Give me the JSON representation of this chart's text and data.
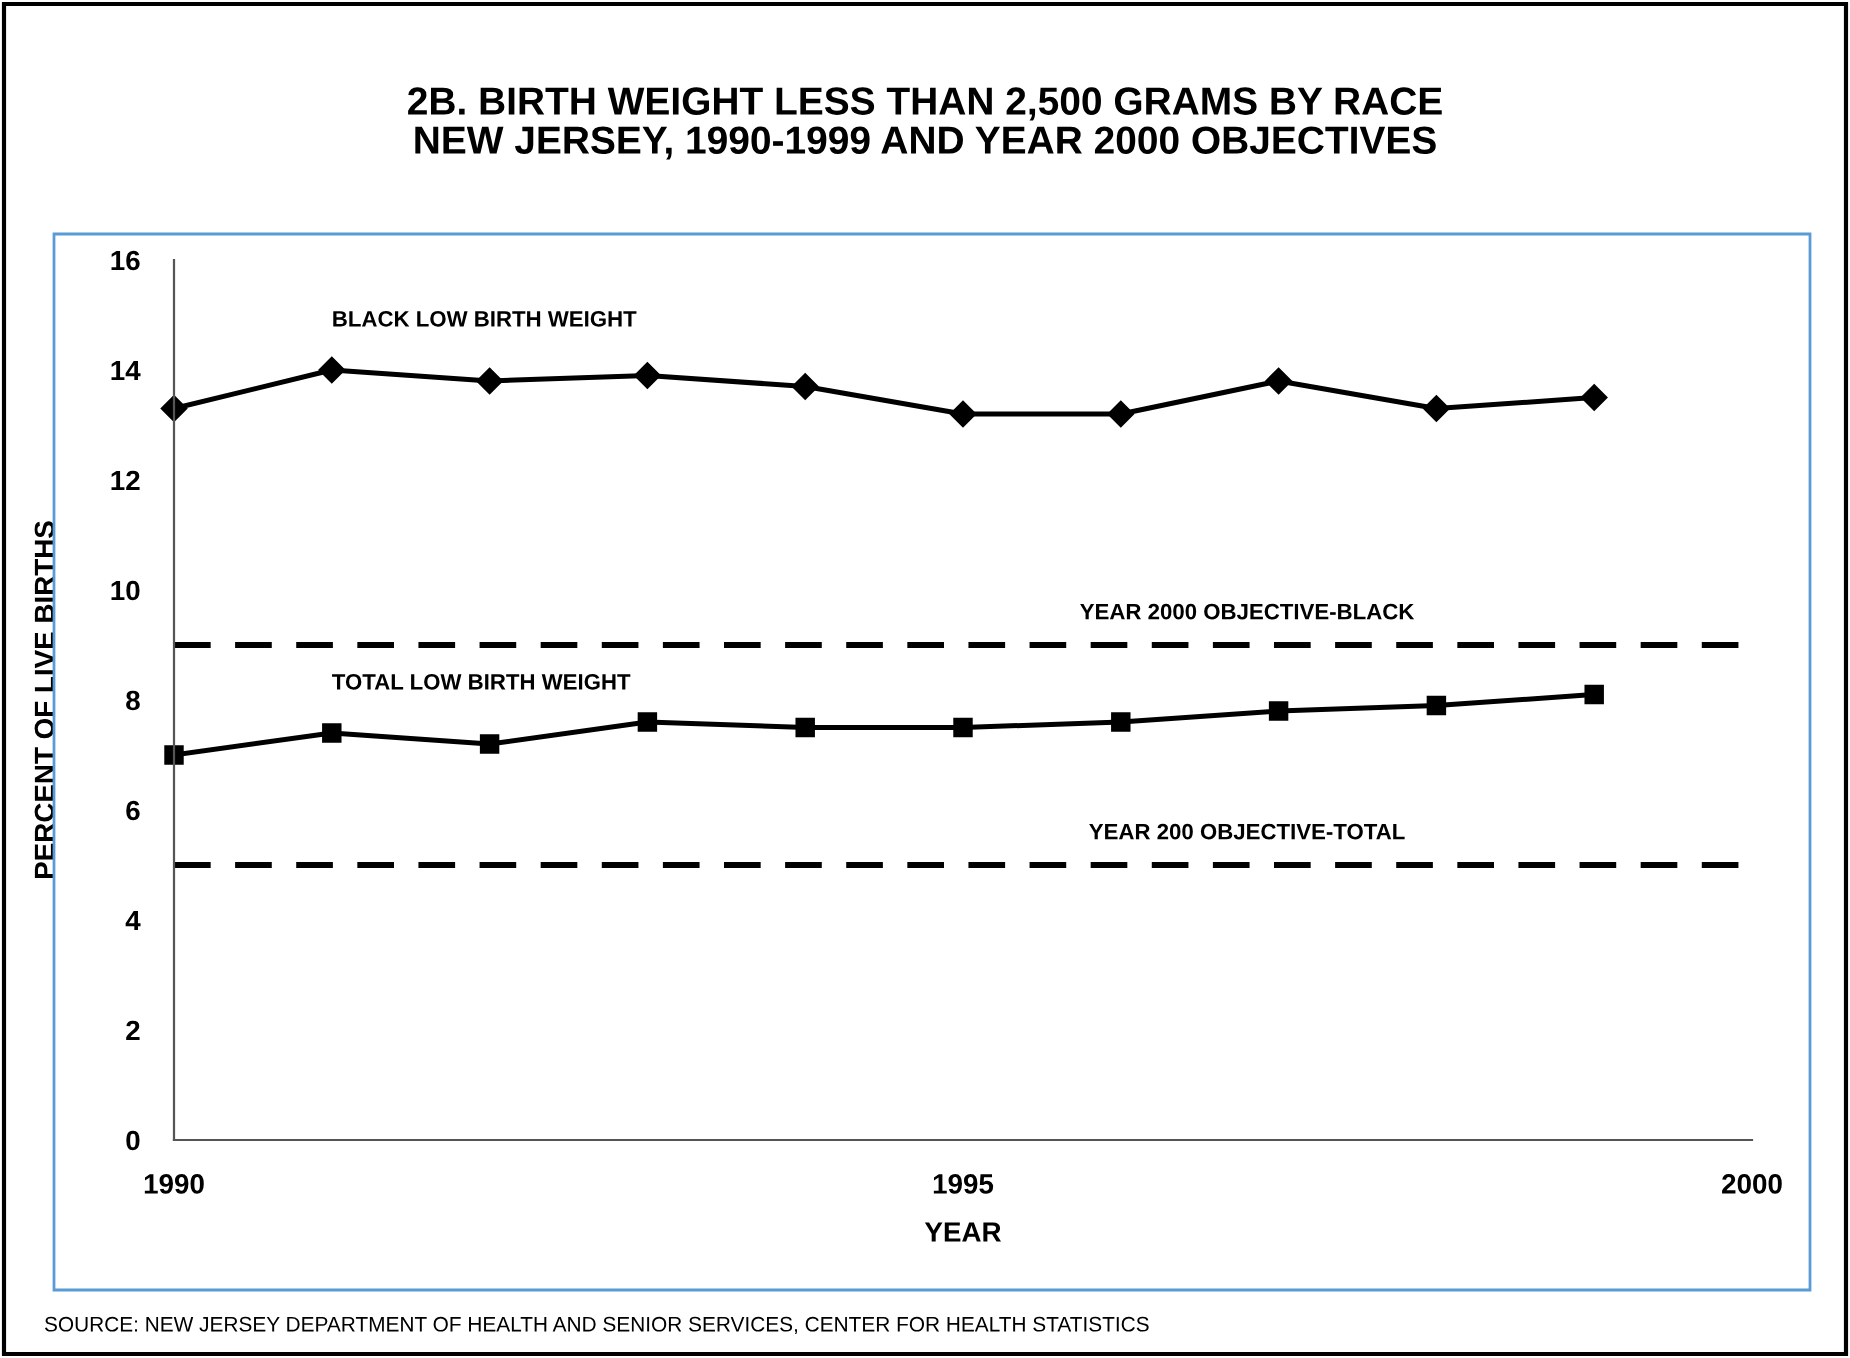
{
  "chart_data": {
    "type": "line",
    "title": "2B. BIRTH WEIGHT LESS THAN 2,500 GRAMS BY RACE\nNEW JERSEY, 1990-1999 AND YEAR 2000 OBJECTIVES",
    "xlabel": "YEAR",
    "ylabel": "PERCENT OF LIVE BIRTHS",
    "x": [
      1990,
      1991,
      1992,
      1993,
      1994,
      1995,
      1996,
      1997,
      1998,
      1999
    ],
    "series": [
      {
        "name": "BLACK LOW BIRTH WEIGHT",
        "color": "#000000",
        "marker": "diamond",
        "values": [
          13.3,
          14.0,
          13.8,
          13.9,
          13.7,
          13.2,
          13.2,
          13.8,
          13.3,
          13.5
        ]
      },
      {
        "name": "TOTAL LOW BIRTH WEIGHT",
        "color": "#000000",
        "marker": "square",
        "values": [
          7.0,
          7.4,
          7.2,
          7.6,
          7.5,
          7.5,
          7.6,
          7.8,
          7.9,
          8.1
        ]
      }
    ],
    "ref_lines": [
      {
        "axis": "y",
        "value": 9,
        "label": "YEAR 2000 OBJECTIVE-BLACK",
        "color": "#000000",
        "line_style": "dashed"
      },
      {
        "axis": "y",
        "value": 5,
        "label": "YEAR 200 OBJECTIVE-TOTAL",
        "color": "#000000",
        "line_style": "dashed"
      }
    ],
    "xlim": [
      1990,
      2000
    ],
    "xticks": [
      1990,
      1995,
      2000
    ],
    "ylim": [
      0,
      16
    ],
    "yticks": [
      0,
      2,
      4,
      6,
      8,
      10,
      12,
      14,
      16
    ],
    "grid": false,
    "legend": false,
    "line_style": "solid",
    "annotations": [
      "SOURCE: NEW JERSEY DEPARTMENT OF HEALTH AND SENIOR SERVICES, CENTER FOR HEALTH STATISTICS"
    ]
  }
}
